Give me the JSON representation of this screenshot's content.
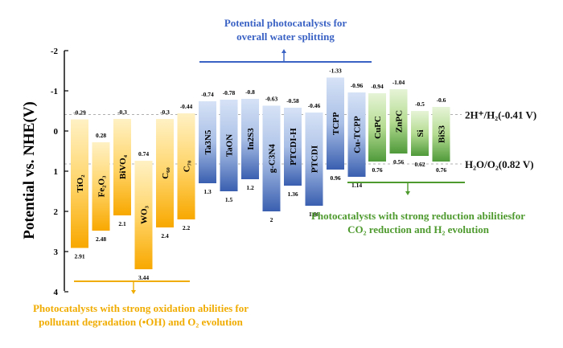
{
  "chart_data": {
    "type": "bar",
    "ylabel": "Potential vs. NHE(V)",
    "ylim": [
      -2,
      4
    ],
    "yticks": [
      "-2",
      "-1",
      "0",
      "1",
      "2",
      "3",
      "4"
    ],
    "y_inverted": true,
    "reference_lines": [
      {
        "label": "2H⁺/H₂(-0.41 V)",
        "value": -0.41
      },
      {
        "label": "H₂O/O₂(0.82 V)",
        "value": 0.82
      }
    ],
    "series": [
      {
        "group": "oxidation",
        "color": "#f8a800",
        "items": [
          {
            "name": "TiO₂",
            "cb": -0.29,
            "vb": 2.91,
            "cb_label": "-0.29",
            "vb_label": "2.91"
          },
          {
            "name": "Fe₂O₃",
            "cb": 0.28,
            "vb": 2.48,
            "cb_label": "0.28",
            "vb_label": "2.48"
          },
          {
            "name": "BiVO₄",
            "cb": -0.3,
            "vb": 2.1,
            "cb_label": "-0.3",
            "vb_label": "2.1"
          },
          {
            "name": "WO₃",
            "cb": 0.74,
            "vb": 3.44,
            "cb_label": "0.74",
            "vb_label": "3.44"
          },
          {
            "name": "C₆₀",
            "cb": -0.3,
            "vb": 2.4,
            "cb_label": "-0.3",
            "vb_label": "2.4"
          },
          {
            "name": "C₇₀",
            "cb": -0.44,
            "vb": 2.2,
            "cb_label": "-0.44",
            "vb_label": "2.2"
          }
        ]
      },
      {
        "group": "overall",
        "color": "#3a5fb0",
        "items": [
          {
            "name": "Ta3N5",
            "cb": -0.74,
            "vb": 1.3,
            "cb_label": "-0.74",
            "vb_label": "1.3"
          },
          {
            "name": "TaON",
            "cb": -0.78,
            "vb": 1.5,
            "cb_label": "-0.78",
            "vb_label": "1.5"
          },
          {
            "name": "In2S3",
            "cb": -0.8,
            "vb": 1.2,
            "cb_label": "-0.8",
            "vb_label": "1.2"
          },
          {
            "name": "g-C3N4",
            "cb": -0.63,
            "vb": 2,
            "cb_label": "-0.63",
            "vb_label": "2"
          },
          {
            "name": "PTCDI-H",
            "cb": -0.58,
            "vb": 1.36,
            "cb_label": "-0.58",
            "vb_label": "1.36"
          },
          {
            "name": "PTCDI",
            "cb": -0.46,
            "vb": 1.86,
            "cb_label": "-0.46",
            "vb_label": "1.86"
          },
          {
            "name": "TCPP",
            "cb": -1.33,
            "vb": 0.96,
            "cb_label": "-1.33",
            "vb_label": "0.96"
          },
          {
            "name": "Cu-TCPP",
            "cb": -0.96,
            "vb": 1.14,
            "cb_label": "-0.96",
            "vb_label": "1.14"
          }
        ]
      },
      {
        "group": "reduction",
        "color": "#4f9a3a",
        "items": [
          {
            "name": "CuPC",
            "cb": -0.94,
            "vb": 0.76,
            "cb_label": "-0.94",
            "vb_label": "0.76"
          },
          {
            "name": "ZnPC",
            "cb": -1.04,
            "vb": 0.56,
            "cb_label": "-1.04",
            "vb_label": "0.56"
          },
          {
            "name": "Si",
            "cb": -0.5,
            "vb": 0.62,
            "cb_label": "-0.5",
            "vb_label": "0.62"
          },
          {
            "name": "BiS3",
            "cb": -0.6,
            "vb": 0.76,
            "cb_label": "-0.6",
            "vb_label": "0.76"
          }
        ]
      }
    ],
    "annotations": {
      "top": [
        "Potential photocatalysts for",
        "overall water splitting"
      ],
      "right": [
        "Photocatalysts with strong reduction abilitiesfor",
        "CO₂ reduction and H₂ evolution"
      ],
      "bottom": [
        "Photocatalysts with strong oxidation abilities for",
        "pollutant degradation (•OH) and O₂ evolution"
      ]
    },
    "annotation_colors": {
      "top": "#3a62c4",
      "right": "#4e9a2e",
      "bottom": "#f0ac00"
    }
  }
}
